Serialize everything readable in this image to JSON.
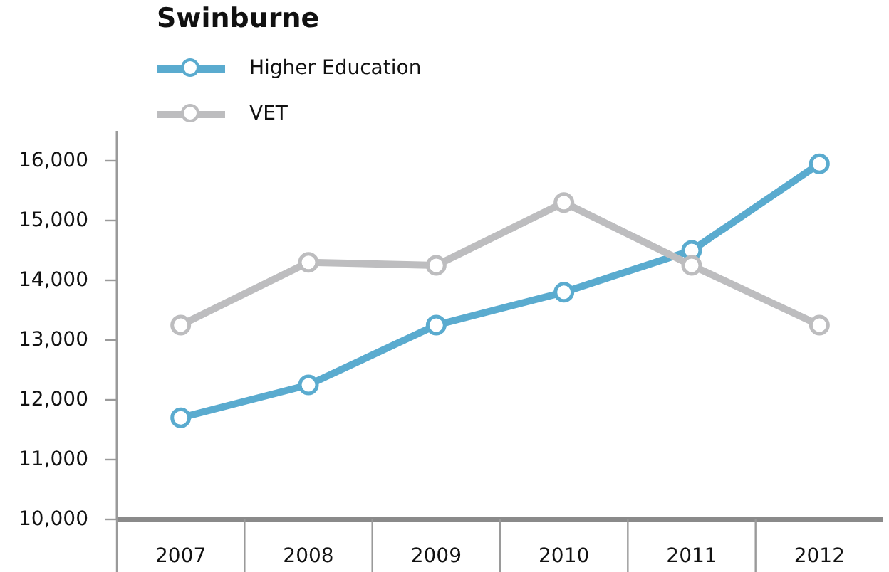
{
  "chart_data": {
    "type": "line",
    "title": "Swinburne",
    "categories": [
      "2007",
      "2008",
      "2009",
      "2010",
      "2011",
      "2012"
    ],
    "series": [
      {
        "name": "Higher Education",
        "color": "#5aabcf",
        "values": [
          11700,
          12250,
          13250,
          13800,
          14500,
          15950
        ]
      },
      {
        "name": "VET",
        "color": "#bdbdbf",
        "values": [
          13250,
          14300,
          14250,
          15300,
          14250,
          13250
        ]
      }
    ],
    "ylim": [
      10000,
      16500
    ],
    "yticks": [
      {
        "value": 10000,
        "label": "10,000"
      },
      {
        "value": 11000,
        "label": "11,000"
      },
      {
        "value": 12000,
        "label": "12,000"
      },
      {
        "value": 13000,
        "label": "13,000"
      },
      {
        "value": 14000,
        "label": "14,000"
      },
      {
        "value": 15000,
        "label": "15,000"
      },
      {
        "value": 16000,
        "label": "16,000"
      }
    ],
    "grid": false,
    "legend": "top left",
    "marker": "circle",
    "line_style": "solid"
  }
}
